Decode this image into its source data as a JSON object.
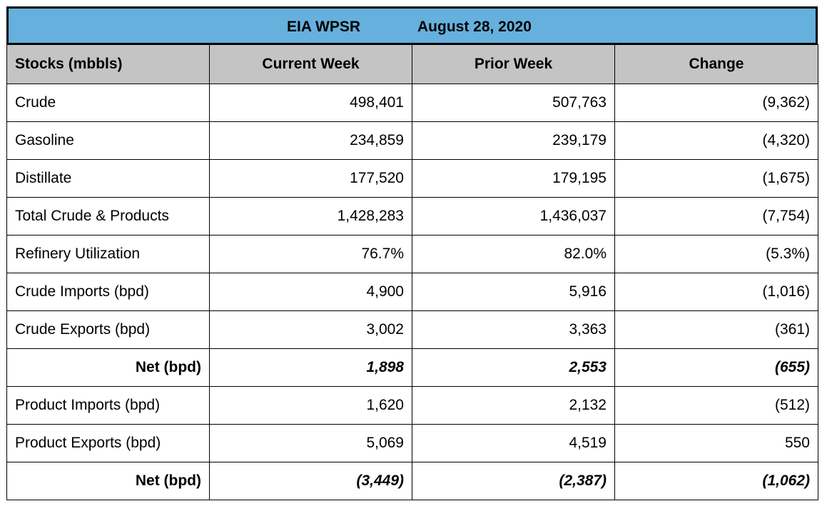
{
  "banner": {
    "source": "EIA WPSR",
    "date": "August 28, 2020"
  },
  "columns": [
    "Stocks (mbbls)",
    "Current Week",
    "Prior Week",
    "Change"
  ],
  "rows": [
    {
      "label": "Crude",
      "current": "498,401",
      "prior": "507,763",
      "change": "(9,362)"
    },
    {
      "label": "Gasoline",
      "current": "234,859",
      "prior": "239,179",
      "change": "(4,320)"
    },
    {
      "label": "Distillate",
      "current": "177,520",
      "prior": "179,195",
      "change": "(1,675)"
    },
    {
      "label": "Total Crude & Products",
      "current": "1,428,283",
      "prior": "1,436,037",
      "change": "(7,754)"
    },
    {
      "label": "Refinery Utilization",
      "current": "76.7%",
      "prior": "82.0%",
      "change": "(5.3%)"
    },
    {
      "label": "Crude Imports (bpd)",
      "current": "4,900",
      "prior": "5,916",
      "change": "(1,016)"
    },
    {
      "label": "Crude Exports (bpd)",
      "current": "3,002",
      "prior": "3,363",
      "change": "(361)"
    },
    {
      "label": "Net (bpd)",
      "current": "1,898",
      "prior": "2,553",
      "change": "(655)"
    },
    {
      "label": "Product Imports (bpd)",
      "current": "1,620",
      "prior": "2,132",
      "change": "(512)"
    },
    {
      "label": "Product Exports (bpd)",
      "current": "5,069",
      "prior": "4,519",
      "change": "550"
    },
    {
      "label": "Net (bpd)",
      "current": "(3,449)",
      "prior": "(2,387)",
      "change": "(1,062)"
    }
  ]
}
